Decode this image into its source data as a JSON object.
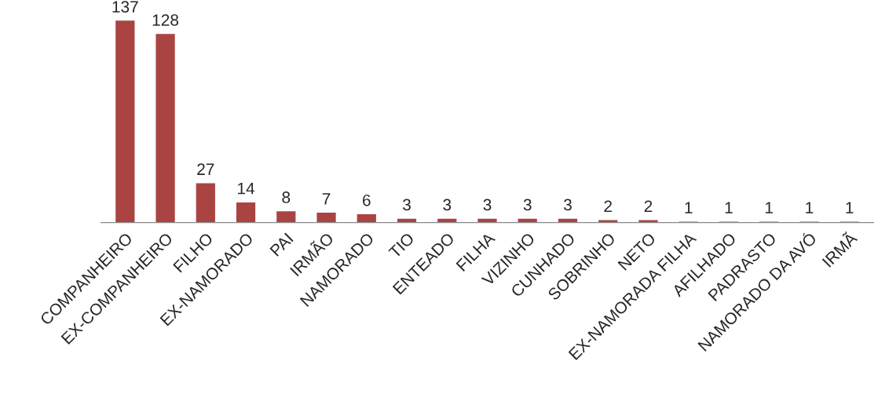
{
  "chart_data": {
    "type": "bar",
    "categories": [
      "COMPANHEIRO",
      "EX-COMPANHEIRO",
      "FILHO",
      "EX-NAMORADO",
      "PAI",
      "IRMÃO",
      "NAMORADO",
      "TIO",
      "ENTEADO",
      "FILHA",
      "VIZINHO",
      "CUNHADO",
      "SOBRINHO",
      "NETO",
      "EX-NAMORADA FILHA",
      "AFILHADO",
      "PADRASTO",
      "NAMORADO DA AVÓ",
      "IRMÃ"
    ],
    "values": [
      137,
      128,
      27,
      14,
      8,
      7,
      6,
      3,
      3,
      3,
      3,
      3,
      2,
      2,
      1,
      1,
      1,
      1,
      1
    ],
    "color": "#a94442",
    "data_labels": true,
    "grid": false,
    "legend": false,
    "tick_labels": "x"
  }
}
